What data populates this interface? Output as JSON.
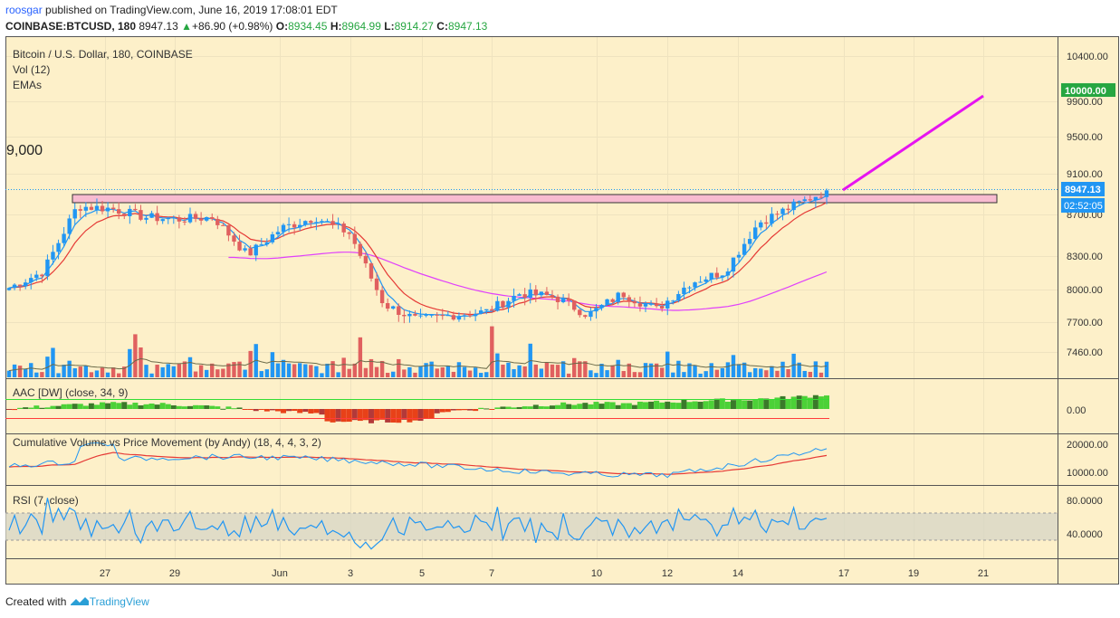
{
  "header": {
    "author": "roosgar",
    "published": "published on TradingView.com, June 16, 2019 17:08:01 EDT",
    "symbol": "COINBASE:BTCUSD, 180",
    "last": "8947.13",
    "change": "+86.90 (+0.98%)",
    "open_label": "O:",
    "open": "8934.45",
    "high_label": "H:",
    "high": "8964.99",
    "low_label": "L:",
    "low": "8914.27",
    "close_label": "C:",
    "close": "8947.13"
  },
  "legend": {
    "title": "Bitcoin / U.S. Dollar, 180, COINBASE",
    "vol": "Vol (12)",
    "emas": "EMAs",
    "big_level": "9,000"
  },
  "price_axis": {
    "ticks": [
      "10400.00",
      "9900.00",
      "9500.00",
      "9100.00",
      "8700.00",
      "8300.00",
      "8000.00",
      "7700.00",
      "7460.00"
    ],
    "tag_target": "10000.00",
    "tag_last": "8947.13",
    "tag_countdown": "02:52:05"
  },
  "aac": {
    "label": "AAC [DW] (close, 34, 9)",
    "ticks": [
      "0.00"
    ]
  },
  "cvp": {
    "label": "Cumulative Volume vs Price Movement (by Andy) (18, 4, 4, 3, 2)",
    "ticks": [
      "20000.00",
      "10000.00"
    ]
  },
  "rsi": {
    "label": "RSI (7, close)",
    "ticks": [
      "80.0000",
      "40.0000"
    ]
  },
  "time_axis": [
    "27",
    "29",
    "Jun",
    "3",
    "5",
    "7",
    "10",
    "12",
    "14",
    "17",
    "19",
    "21"
  ],
  "footer": {
    "created": "Created with",
    "brand": "TradingView"
  },
  "colors": {
    "background": "#fdf0c9",
    "up": "#2196f3",
    "down": "#e0605f",
    "ema_fast": "#2196f3",
    "ema_mid": "#e53935",
    "ema_slow": "#e040fb",
    "resistance_zone": "#f8bbd0",
    "target_line": "#e614f0",
    "tag_target": "#26a641",
    "tag_last": "#2196f3"
  },
  "chart_data": {
    "type": "candlestick",
    "title": "Bitcoin / U.S. Dollar, 180, COINBASE",
    "timeframe": "180",
    "x_ticks": [
      "27",
      "29",
      "Jun",
      "3",
      "5",
      "7",
      "10",
      "12",
      "14",
      "17",
      "19",
      "21"
    ],
    "y_ticks": [
      10400,
      9900,
      9500,
      9100,
      8700,
      8300,
      8000,
      7700,
      7460
    ],
    "last_close": 8947.13,
    "resistance_zone": [
      8800,
      8920
    ],
    "projection": {
      "from": 8890,
      "to": 9950
    },
    "target": 10000,
    "close_path": [
      {
        "day": "25",
        "close": 8050
      },
      {
        "day": "26",
        "close": 8200
      },
      {
        "day": "26",
        "close": 8800
      },
      {
        "day": "27",
        "close": 8780
      },
      {
        "day": "28",
        "close": 8700
      },
      {
        "day": "29",
        "close": 8680
      },
      {
        "day": "30",
        "close": 8700
      },
      {
        "day": "31",
        "close": 8350
      },
      {
        "day": "Jun",
        "close": 8600
      },
      {
        "day": "2",
        "close": 8700
      },
      {
        "day": "3",
        "close": 8550
      },
      {
        "day": "3",
        "close": 7900
      },
      {
        "day": "4",
        "close": 7750
      },
      {
        "day": "5",
        "close": 7800
      },
      {
        "day": "6",
        "close": 7830
      },
      {
        "day": "7",
        "close": 8000
      },
      {
        "day": "8",
        "close": 7970
      },
      {
        "day": "9",
        "close": 7800
      },
      {
        "day": "10",
        "close": 8000
      },
      {
        "day": "11",
        "close": 7850
      },
      {
        "day": "12",
        "close": 8100
      },
      {
        "day": "13",
        "close": 8200
      },
      {
        "day": "14",
        "close": 8650
      },
      {
        "day": "15",
        "close": 8800
      },
      {
        "day": "16",
        "close": 8947
      }
    ]
  }
}
